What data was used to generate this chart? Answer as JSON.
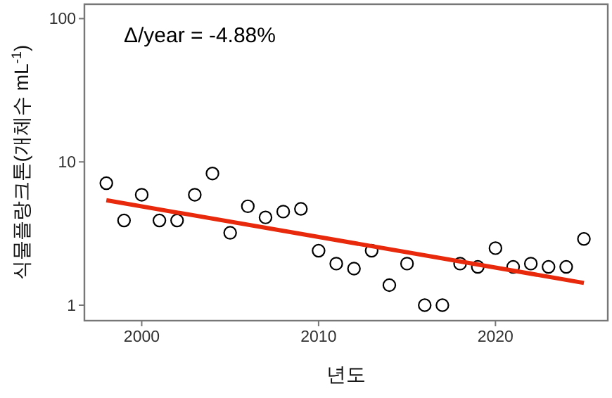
{
  "chart_data": {
    "type": "scatter",
    "xlabel": "년도",
    "ylabel": "식물플랑크톤(개체수 mL$^{-1}$)",
    "log": "y",
    "xlim": [
      1996.76,
      2026.35
    ],
    "ylim": [
      0.78,
      126
    ],
    "xticks": [
      2000,
      2010,
      2020
    ],
    "yticks": [
      1,
      10,
      100
    ],
    "annotations": [
      "Δ/year = -4.88%"
    ],
    "series": [
      {
        "type": "scatter",
        "color": "#000000",
        "marker": "circle",
        "x": [
          1998,
          1999,
          2000,
          2001,
          2002,
          2003,
          2004,
          2005,
          2006,
          2007,
          2008,
          2009,
          2010,
          2011,
          2012,
          2013,
          2014,
          2015,
          2016,
          2017,
          2018,
          2019,
          2020,
          2021,
          2022,
          2023,
          2024,
          2025
        ],
        "values": [
          7.1,
          3.9,
          5.9,
          3.9,
          3.9,
          5.9,
          8.3,
          3.2,
          4.9,
          4.1,
          4.5,
          4.7,
          2.4,
          1.95,
          1.8,
          2.4,
          1.38,
          1.95,
          1.0,
          1.0,
          1.95,
          1.85,
          2.5,
          1.85,
          1.95,
          1.85,
          1.85,
          2.9
        ]
      },
      {
        "type": "line",
        "color": "#e8290b",
        "x": [
          1998,
          2025
        ],
        "values": [
          5.4,
          1.43
        ]
      }
    ]
  }
}
